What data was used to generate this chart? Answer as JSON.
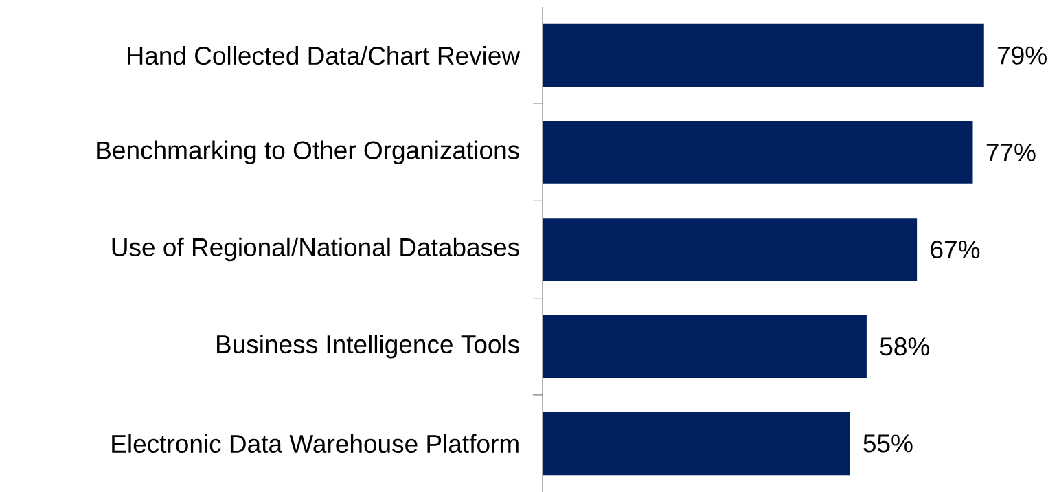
{
  "chart_data": {
    "type": "bar",
    "orientation": "horizontal",
    "categories": [
      "Hand Collected Data/Chart Review",
      "Benchmarking to Other Organizations",
      "Use of Regional/National Databases",
      "Business Intelligence Tools",
      "Electronic Data Warehouse Platform"
    ],
    "values": [
      79,
      77,
      67,
      58,
      55
    ],
    "value_labels": [
      "79%",
      "77%",
      "67%",
      "58%",
      "55%"
    ],
    "color": "#002060"
  }
}
